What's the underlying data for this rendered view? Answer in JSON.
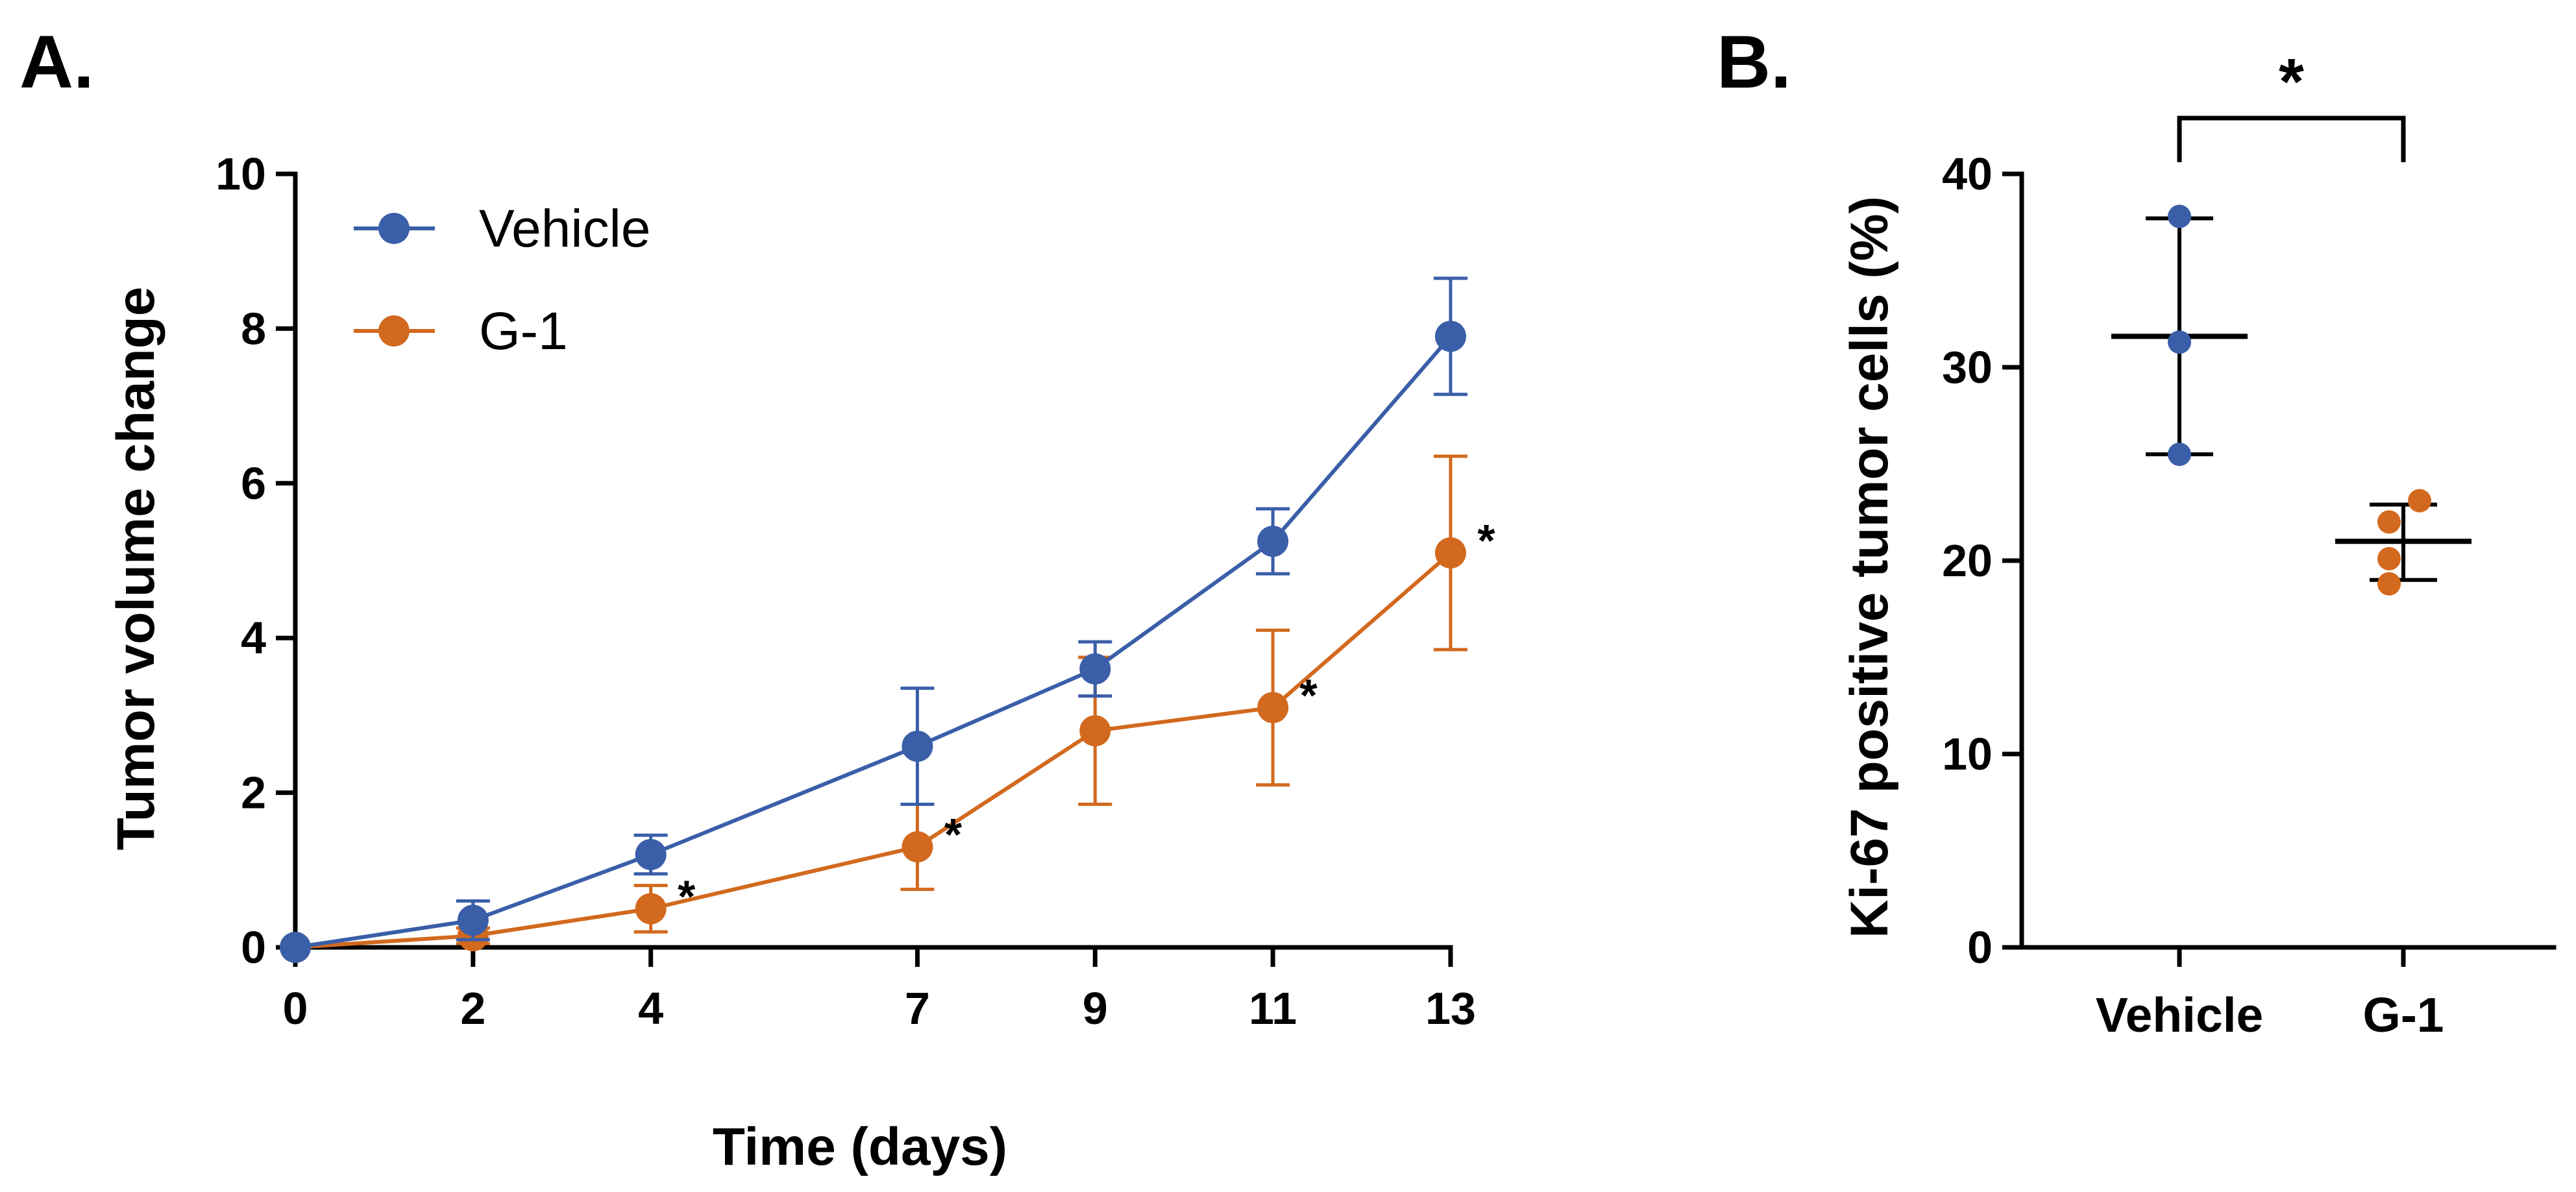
{
  "panel_labels": {
    "a": "A.",
    "b": "B."
  },
  "colors": {
    "vehicle": "#3a5ea8",
    "g1": "#d2691e",
    "axis": "#000000"
  },
  "chart_data": [
    {
      "id": "panel-a",
      "type": "line",
      "title": "",
      "xlabel": "Time (days)",
      "ylabel": "Tumor volume change",
      "xlim": [
        0,
        13
      ],
      "ylim": [
        0,
        10
      ],
      "xticks": [
        0,
        2,
        4,
        7,
        9,
        11,
        13
      ],
      "yticks": [
        0,
        2,
        4,
        6,
        8,
        10
      ],
      "legend": {
        "position": "top-left"
      },
      "series": [
        {
          "name": "Vehicle",
          "x": [
            0,
            2,
            4,
            7,
            9,
            11,
            13
          ],
          "y": [
            0,
            0.35,
            1.2,
            2.6,
            3.6,
            5.25,
            7.9
          ],
          "error": [
            0,
            0.25,
            0.25,
            0.75,
            0.35,
            0.42,
            0.75
          ]
        },
        {
          "name": "G-1",
          "x": [
            0,
            2,
            4,
            7,
            9,
            11,
            13
          ],
          "y": [
            0,
            0.15,
            0.5,
            1.3,
            2.8,
            3.1,
            5.1
          ],
          "error": [
            0,
            0.1,
            0.3,
            0.55,
            0.95,
            1.0,
            1.25
          ]
        }
      ],
      "annotations": [
        {
          "text": "*",
          "x": 4,
          "y": 0.5
        },
        {
          "text": "*",
          "x": 7,
          "y": 1.3
        },
        {
          "text": "*",
          "x": 11,
          "y": 3.1
        },
        {
          "text": "*",
          "x": 13,
          "y": 5.1
        }
      ]
    },
    {
      "id": "panel-b",
      "type": "scatter",
      "title": "",
      "xlabel": "",
      "ylabel": "Ki-67 positive tumor cells (%)",
      "categories": [
        "Vehicle",
        "G-1"
      ],
      "ylim": [
        0,
        40
      ],
      "yticks": [
        0,
        10,
        20,
        30,
        40
      ],
      "groups": [
        {
          "name": "Vehicle",
          "points": [
            37.8,
            31.3,
            25.5
          ],
          "mean": 31.6,
          "sd_low": 25.5,
          "sd_high": 37.7
        },
        {
          "name": "G-1",
          "points": [
            23.1,
            22.0,
            20.1,
            18.8
          ],
          "mean": 21.0,
          "sd_low": 19.0,
          "sd_high": 22.9
        }
      ],
      "significance": {
        "text": "*",
        "between": [
          "Vehicle",
          "G-1"
        ]
      }
    }
  ]
}
